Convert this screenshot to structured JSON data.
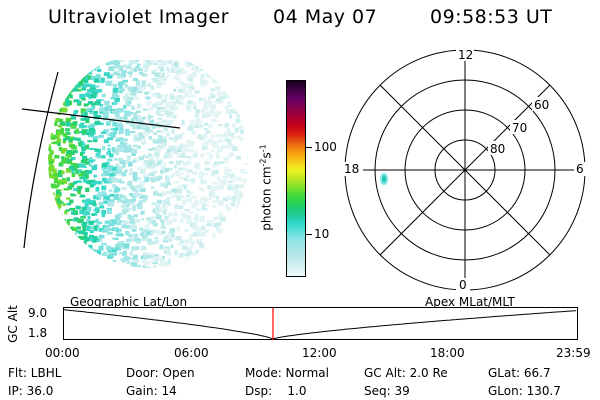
{
  "header": {
    "instrument": "Ultraviolet Imager",
    "date": "04 May 07",
    "time": "09:58:53 UT"
  },
  "colorbar": {
    "label_prefix": "photon cm",
    "label_exp1": "-2",
    "label_mid": "s",
    "label_exp2": "-1",
    "ticks": [
      "100",
      "10"
    ],
    "colors": [
      "#f0fafa",
      "#d8f2f2",
      "#bfeaea",
      "#a8e6e6",
      "#8ee4e4",
      "#5fe0d8",
      "#2fd8c8",
      "#20c890",
      "#22d060",
      "#3fd83a",
      "#7de02c",
      "#bfe824",
      "#eef020",
      "#f6c418",
      "#f59a10",
      "#e86010",
      "#d82010",
      "#c40018",
      "#a40038",
      "#86004f",
      "#660066",
      "#3e0044",
      "#1a0020"
    ]
  },
  "polar": {
    "mlt_labels": {
      "top": "12",
      "left": "18",
      "right": "6",
      "bottom": "0"
    },
    "lat_labels": [
      "60",
      "70",
      "80"
    ]
  },
  "timeline": {
    "left_label": "Geographic Lat/Lon",
    "right_label": "Apex MLat/MLT",
    "axis_title": "GC Alt",
    "ymax": "9.0",
    "ymin": "1.8",
    "ticks": [
      "00:00",
      "06:00",
      "12:00",
      "18:00",
      "23:59"
    ]
  },
  "info": {
    "row1": [
      "Flt: LBHL",
      "Door: Open",
      "Mode: Normal",
      "GC Alt: 2.0 Re",
      "GLat:  66.7"
    ],
    "row2": [
      "IP: 36.0",
      "Gain: 14",
      "Dsp:    1.0",
      "Seq: 39",
      "GLon: 130.7"
    ]
  },
  "style": {
    "marker_color": "#ff0000",
    "curve_color": "#000000"
  }
}
